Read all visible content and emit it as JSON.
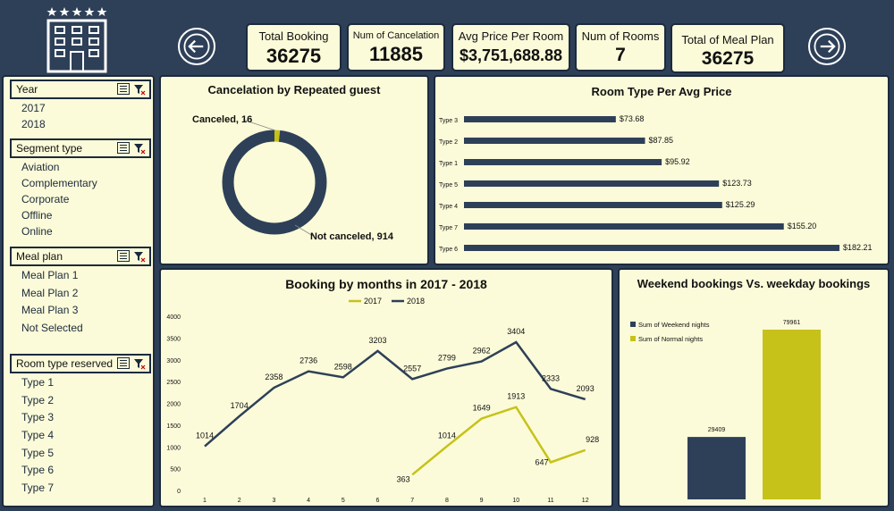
{
  "kpis": [
    {
      "label": "Total Booking",
      "value": "36275"
    },
    {
      "label": "Num of Cancelation",
      "value": "11885"
    },
    {
      "label": "Avg Price Per Room",
      "value": "$3,751,688.88"
    },
    {
      "label": "Num of Rooms",
      "value": "7"
    },
    {
      "label": "Total of Meal Plan",
      "value": "36275"
    }
  ],
  "slicers": {
    "year": {
      "title": "Year",
      "items": [
        "2017",
        "2018"
      ]
    },
    "segment": {
      "title": "Segment type",
      "items": [
        "Aviation",
        "Complementary",
        "Corporate",
        "Offline",
        "Online"
      ]
    },
    "meal": {
      "title": "Meal plan",
      "items": [
        "Meal Plan 1",
        "Meal Plan 2",
        "Meal Plan 3",
        "Not Selected"
      ]
    },
    "room": {
      "title": "Room type reserved",
      "items": [
        "Type 1",
        "Type 2",
        "Type 3",
        "Type 4",
        "Type 5",
        "Type 6",
        "Type 7"
      ]
    }
  },
  "colors": {
    "navy": "#2e4058",
    "olive": "#c6c21a",
    "panel": "#fbfbd9"
  },
  "chart_data": [
    {
      "type": "pie",
      "title": "Cancelation by Repeated guest",
      "labels": [
        "Canceled",
        "Not canceled"
      ],
      "values": [
        16,
        914
      ],
      "data_labels": [
        "Canceled, 16",
        "Not canceled, 914"
      ]
    },
    {
      "type": "bar",
      "orientation": "horizontal",
      "title": "Room Type Per Avg Price",
      "categories": [
        "Type 3",
        "Type 2",
        "Type 1",
        "Type 5",
        "Type 4",
        "Type 7",
        "Type 6"
      ],
      "values": [
        73.68,
        87.85,
        95.92,
        123.73,
        125.29,
        155.2,
        182.21
      ],
      "data_labels": [
        "$73.68",
        "$87.85",
        "$95.92",
        "$123.73",
        "$125.29",
        "$155.20",
        "$182.21"
      ]
    },
    {
      "type": "line",
      "title": "Booking by months in 2017 - 2018",
      "x": [
        1,
        2,
        3,
        4,
        5,
        6,
        7,
        8,
        9,
        10,
        11,
        12
      ],
      "ylim": [
        0,
        4000
      ],
      "yticks": [
        0,
        500,
        1000,
        1500,
        2000,
        2500,
        3000,
        3500,
        4000
      ],
      "legend": "top",
      "series": [
        {
          "name": "2017",
          "x": [
            7,
            8,
            9,
            10,
            11,
            12
          ],
          "values": [
            363,
            1014,
            1649,
            1913,
            647,
            928
          ]
        },
        {
          "name": "2018",
          "x": [
            1,
            2,
            3,
            4,
            5,
            6,
            7,
            8,
            9,
            10,
            11,
            12
          ],
          "values": [
            1014,
            1704,
            2358,
            2736,
            2598,
            3203,
            2557,
            2799,
            2962,
            3404,
            2333,
            2093
          ]
        }
      ]
    },
    {
      "type": "bar",
      "title": "Weekend bookings  Vs. weekday bookings",
      "legend": "top-left",
      "series": [
        {
          "name": "Sum of Weekend nights",
          "values": [
            29409
          ]
        },
        {
          "name": "Sum of Normal nights",
          "values": [
            79961
          ]
        }
      ],
      "data_labels": [
        "29409",
        "79961"
      ]
    }
  ]
}
